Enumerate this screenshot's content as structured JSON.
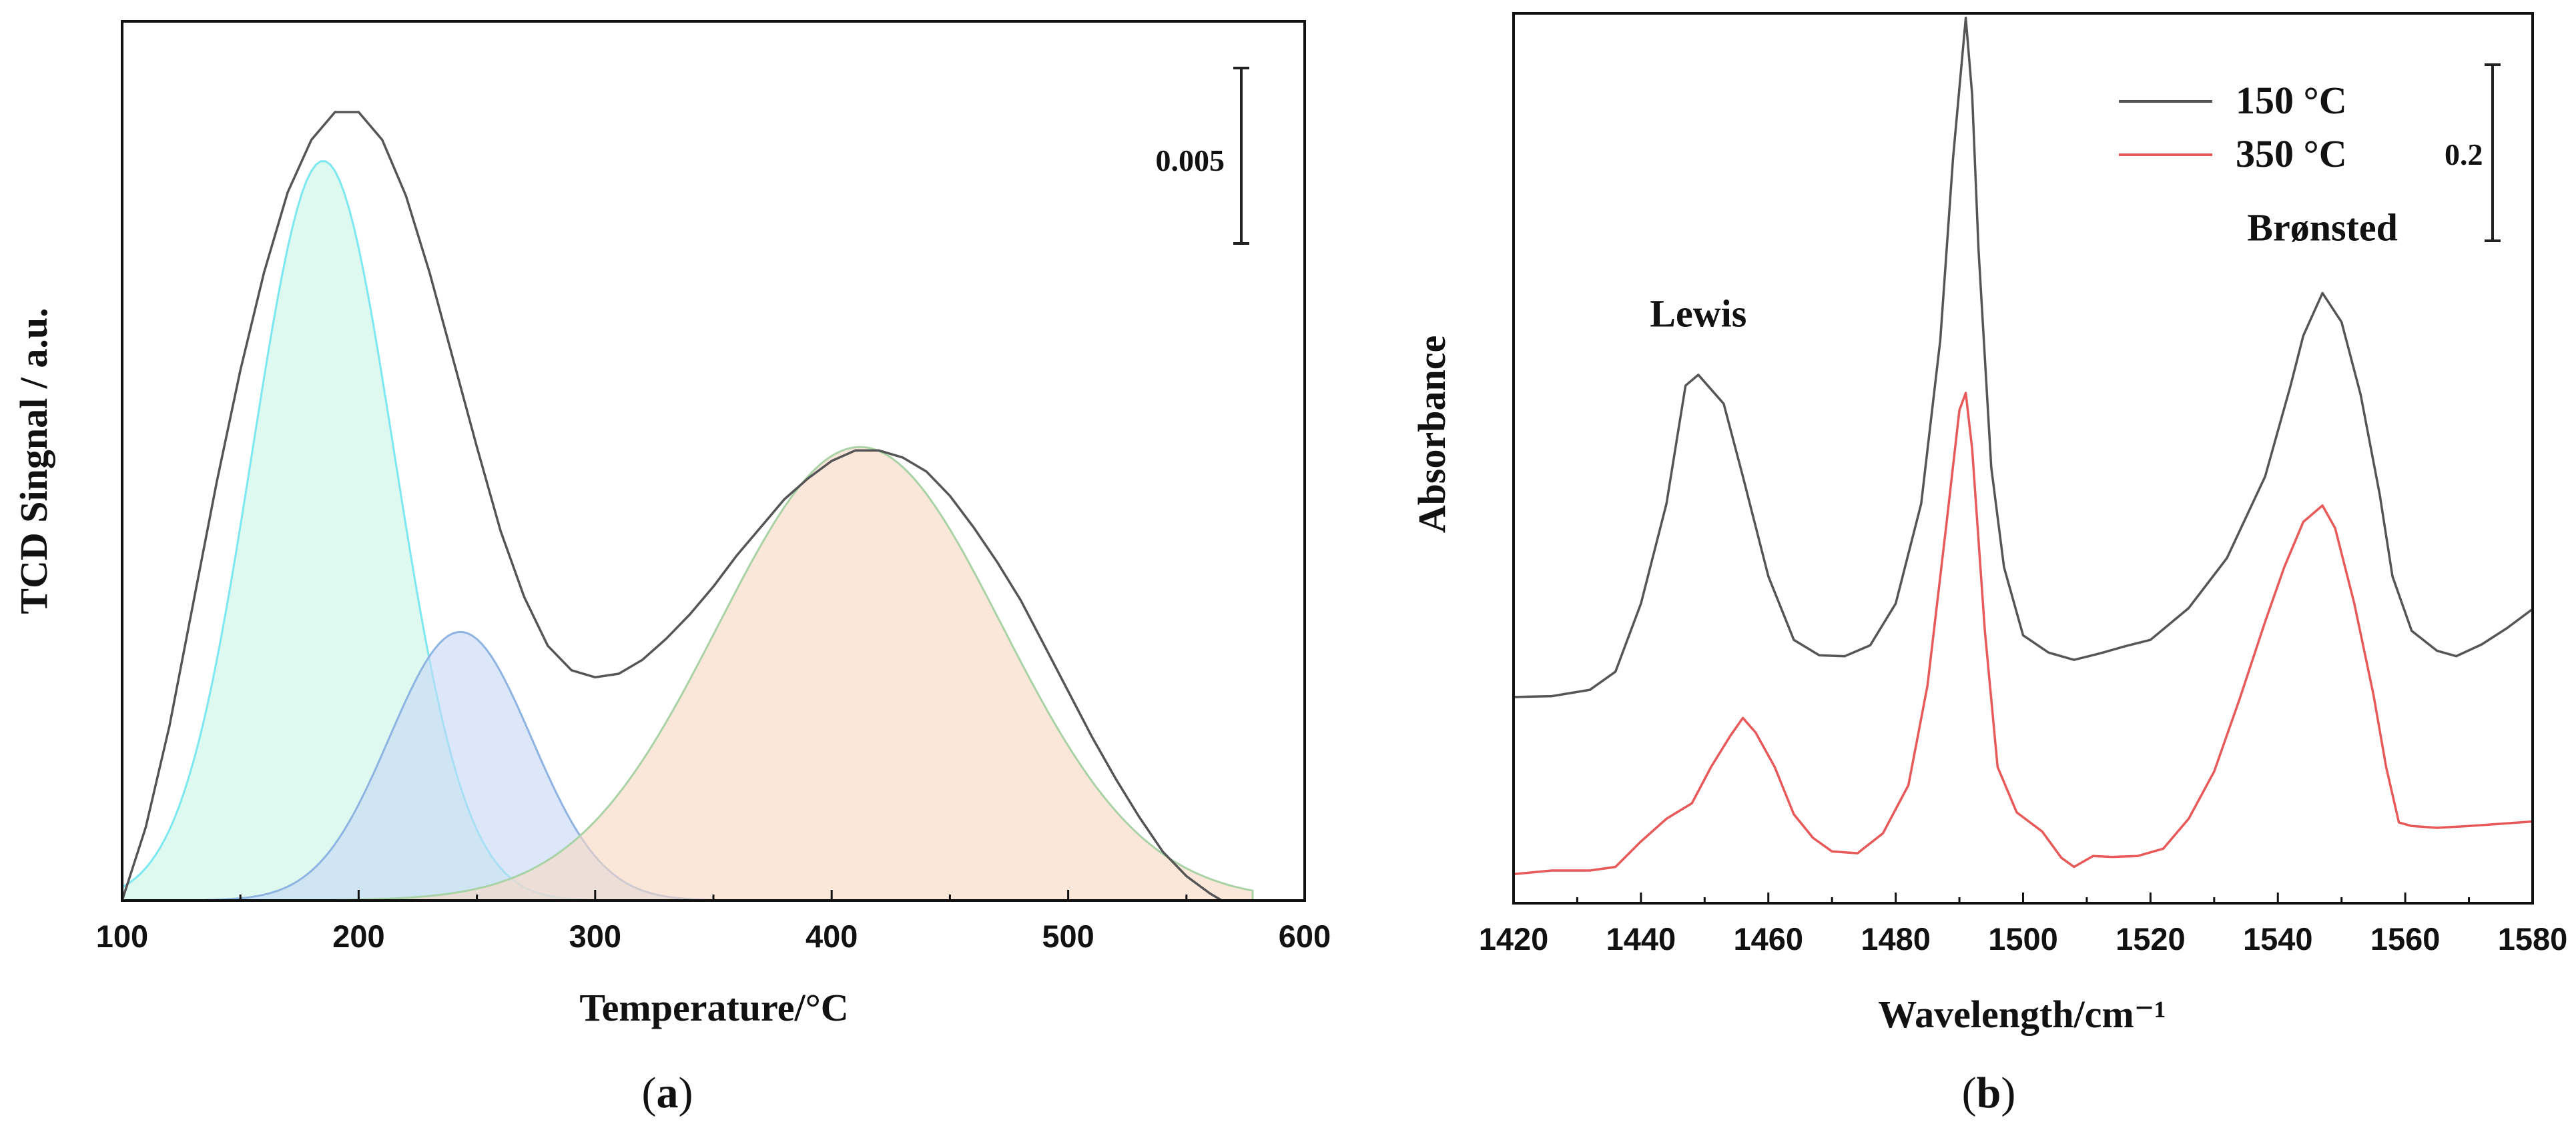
{
  "chart_data": [
    {
      "type": "line",
      "panel_label": "a",
      "xlabel": "Temperature/°C",
      "ylabel": "TCD Singnal / a.u.",
      "xlim": [
        100,
        600
      ],
      "x_ticks": [
        "100",
        "200",
        "300",
        "400",
        "500",
        "600"
      ],
      "y_ticks_shown": false,
      "grid": false,
      "scale_bar": {
        "label": "0.005",
        "value": 0.005
      },
      "ylim": [
        0,
        0.0252
      ],
      "series": [
        {
          "color": "#555555",
          "points": [
            [
              100,
              0.0
            ],
            [
              110,
              0.0021
            ],
            [
              120,
              0.005
            ],
            [
              130,
              0.0085
            ],
            [
              140,
              0.012
            ],
            [
              150,
              0.0152
            ],
            [
              160,
              0.018
            ],
            [
              170,
              0.0203
            ],
            [
              180,
              0.0218
            ],
            [
              190,
              0.0226
            ],
            [
              200,
              0.0226
            ],
            [
              210,
              0.0218
            ],
            [
              220,
              0.0202
            ],
            [
              230,
              0.018
            ],
            [
              240,
              0.0155
            ],
            [
              250,
              0.013
            ],
            [
              260,
              0.0106
            ],
            [
              270,
              0.0087
            ],
            [
              280,
              0.0073
            ],
            [
              290,
              0.0066
            ],
            [
              300,
              0.0064
            ],
            [
              310,
              0.0065
            ],
            [
              320,
              0.0069
            ],
            [
              330,
              0.0075
            ],
            [
              340,
              0.0082
            ],
            [
              350,
              0.009
            ],
            [
              360,
              0.0099
            ],
            [
              370,
              0.0107
            ],
            [
              380,
              0.0115
            ],
            [
              390,
              0.0121
            ],
            [
              400,
              0.0126
            ],
            [
              410,
              0.0129
            ],
            [
              420,
              0.0129
            ],
            [
              430,
              0.0127
            ],
            [
              440,
              0.0123
            ],
            [
              450,
              0.0116
            ],
            [
              460,
              0.0107
            ],
            [
              470,
              0.0097
            ],
            [
              480,
              0.0086
            ],
            [
              490,
              0.0073
            ],
            [
              500,
              0.006
            ],
            [
              510,
              0.0047
            ],
            [
              520,
              0.0035
            ],
            [
              530,
              0.0024
            ],
            [
              540,
              0.0014
            ],
            [
              550,
              0.0007
            ],
            [
              560,
              0.0002
            ],
            [
              565,
              0.0
            ]
          ]
        }
      ],
      "fitted_peaks": [
        {
          "center": 185,
          "height": 0.0212,
          "width": 30,
          "fill": "#c8f5e6",
          "stroke": "#7de8ef"
        },
        {
          "center": 243,
          "height": 0.0077,
          "width": 30,
          "fill": "#c6d8f5",
          "stroke": "#8fb4e2"
        },
        {
          "center": 412,
          "height": 0.013,
          "width": 60,
          "fill": "#f9d9c4",
          "stroke": "#a9d3a6"
        }
      ]
    },
    {
      "type": "line",
      "panel_label": "b",
      "xlabel": "Wavelength/cm⁻¹",
      "ylabel": "Absorbance",
      "xlim": [
        1420,
        1580
      ],
      "x_ticks": [
        "1420",
        "1440",
        "1460",
        "1480",
        "1500",
        "1520",
        "1540",
        "1560",
        "1580"
      ],
      "y_ticks_shown": false,
      "grid": false,
      "legend_position": "top-right",
      "scale_bar": {
        "label": "0.2",
        "value": 0.2
      },
      "ylim": [
        0,
        0.98
      ],
      "annotations": [
        {
          "text": "Lewis",
          "x": 1449,
          "y": 0.635
        },
        {
          "text": "Brønsted",
          "x": 1547,
          "y": 0.73
        }
      ],
      "series": [
        {
          "name": "150 °C",
          "color": "#555555",
          "points": [
            [
              1420,
              0.227
            ],
            [
              1426,
              0.228
            ],
            [
              1432,
              0.235
            ],
            [
              1436,
              0.255
            ],
            [
              1440,
              0.33
            ],
            [
              1444,
              0.44
            ],
            [
              1447,
              0.57
            ],
            [
              1449,
              0.582
            ],
            [
              1453,
              0.55
            ],
            [
              1456,
              0.47
            ],
            [
              1460,
              0.36
            ],
            [
              1464,
              0.29
            ],
            [
              1468,
              0.273
            ],
            [
              1472,
              0.272
            ],
            [
              1476,
              0.284
            ],
            [
              1480,
              0.33
            ],
            [
              1484,
              0.44
            ],
            [
              1487,
              0.62
            ],
            [
              1489,
              0.82
            ],
            [
              1491,
              0.975
            ],
            [
              1492,
              0.89
            ],
            [
              1493,
              0.72
            ],
            [
              1495,
              0.48
            ],
            [
              1497,
              0.37
            ],
            [
              1500,
              0.295
            ],
            [
              1504,
              0.276
            ],
            [
              1508,
              0.268
            ],
            [
              1512,
              0.275
            ],
            [
              1516,
              0.283
            ],
            [
              1520,
              0.29
            ],
            [
              1526,
              0.325
            ],
            [
              1532,
              0.38
            ],
            [
              1538,
              0.47
            ],
            [
              1542,
              0.57
            ],
            [
              1544,
              0.625
            ],
            [
              1547,
              0.672
            ],
            [
              1550,
              0.64
            ],
            [
              1553,
              0.56
            ],
            [
              1556,
              0.45
            ],
            [
              1558,
              0.36
            ],
            [
              1561,
              0.3
            ],
            [
              1565,
              0.278
            ],
            [
              1568,
              0.272
            ],
            [
              1572,
              0.285
            ],
            [
              1576,
              0.303
            ],
            [
              1580,
              0.324
            ]
          ]
        },
        {
          "name": "350 °C",
          "color": "#e8595a",
          "points": [
            [
              1420,
              0.032
            ],
            [
              1426,
              0.036
            ],
            [
              1432,
              0.036
            ],
            [
              1436,
              0.04
            ],
            [
              1440,
              0.068
            ],
            [
              1444,
              0.093
            ],
            [
              1448,
              0.11
            ],
            [
              1451,
              0.15
            ],
            [
              1454,
              0.184
            ],
            [
              1456,
              0.204
            ],
            [
              1458,
              0.188
            ],
            [
              1461,
              0.15
            ],
            [
              1464,
              0.098
            ],
            [
              1467,
              0.072
            ],
            [
              1470,
              0.057
            ],
            [
              1474,
              0.055
            ],
            [
              1478,
              0.077
            ],
            [
              1482,
              0.13
            ],
            [
              1485,
              0.24
            ],
            [
              1488,
              0.42
            ],
            [
              1490,
              0.543
            ],
            [
              1491,
              0.562
            ],
            [
              1492,
              0.5
            ],
            [
              1494,
              0.3
            ],
            [
              1496,
              0.15
            ],
            [
              1499,
              0.1
            ],
            [
              1503,
              0.079
            ],
            [
              1506,
              0.05
            ],
            [
              1508,
              0.04
            ],
            [
              1511,
              0.052
            ],
            [
              1514,
              0.051
            ],
            [
              1518,
              0.052
            ],
            [
              1522,
              0.06
            ],
            [
              1526,
              0.093
            ],
            [
              1530,
              0.145
            ],
            [
              1534,
              0.225
            ],
            [
              1538,
              0.31
            ],
            [
              1541,
              0.37
            ],
            [
              1544,
              0.42
            ],
            [
              1547,
              0.438
            ],
            [
              1549,
              0.413
            ],
            [
              1552,
              0.33
            ],
            [
              1555,
              0.23
            ],
            [
              1557,
              0.15
            ],
            [
              1559,
              0.089
            ],
            [
              1561,
              0.085
            ],
            [
              1565,
              0.083
            ],
            [
              1570,
              0.085
            ],
            [
              1574,
              0.087
            ],
            [
              1580,
              0.09
            ]
          ]
        }
      ]
    }
  ]
}
